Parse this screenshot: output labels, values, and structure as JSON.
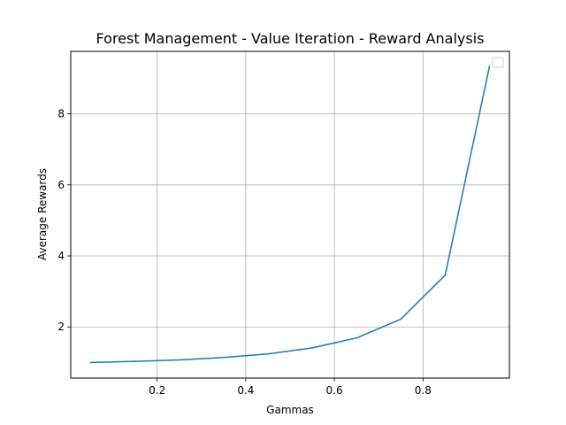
{
  "chart_data": {
    "type": "line",
    "title": "Forest Management - Value Iteration - Reward Analysis",
    "xlabel": "Gammas",
    "ylabel": "Average Rewards",
    "xlim": [
      0.005,
      0.995
    ],
    "ylim": [
      0.56,
      9.76
    ],
    "xticks": [
      0.2,
      0.4,
      0.6,
      0.8
    ],
    "yticks": [
      2,
      4,
      6,
      8
    ],
    "grid": true,
    "legend": "top-right (empty)",
    "colors": {
      "line": "#1f77b4",
      "grid": "#b0b0b0"
    },
    "series": [
      {
        "x": [
          0.05,
          0.15,
          0.25,
          0.35,
          0.45,
          0.55,
          0.65,
          0.75,
          0.85,
          0.95
        ],
        "values": [
          1.0,
          1.03,
          1.07,
          1.14,
          1.24,
          1.41,
          1.69,
          2.22,
          3.46,
          9.34
        ]
      }
    ]
  }
}
